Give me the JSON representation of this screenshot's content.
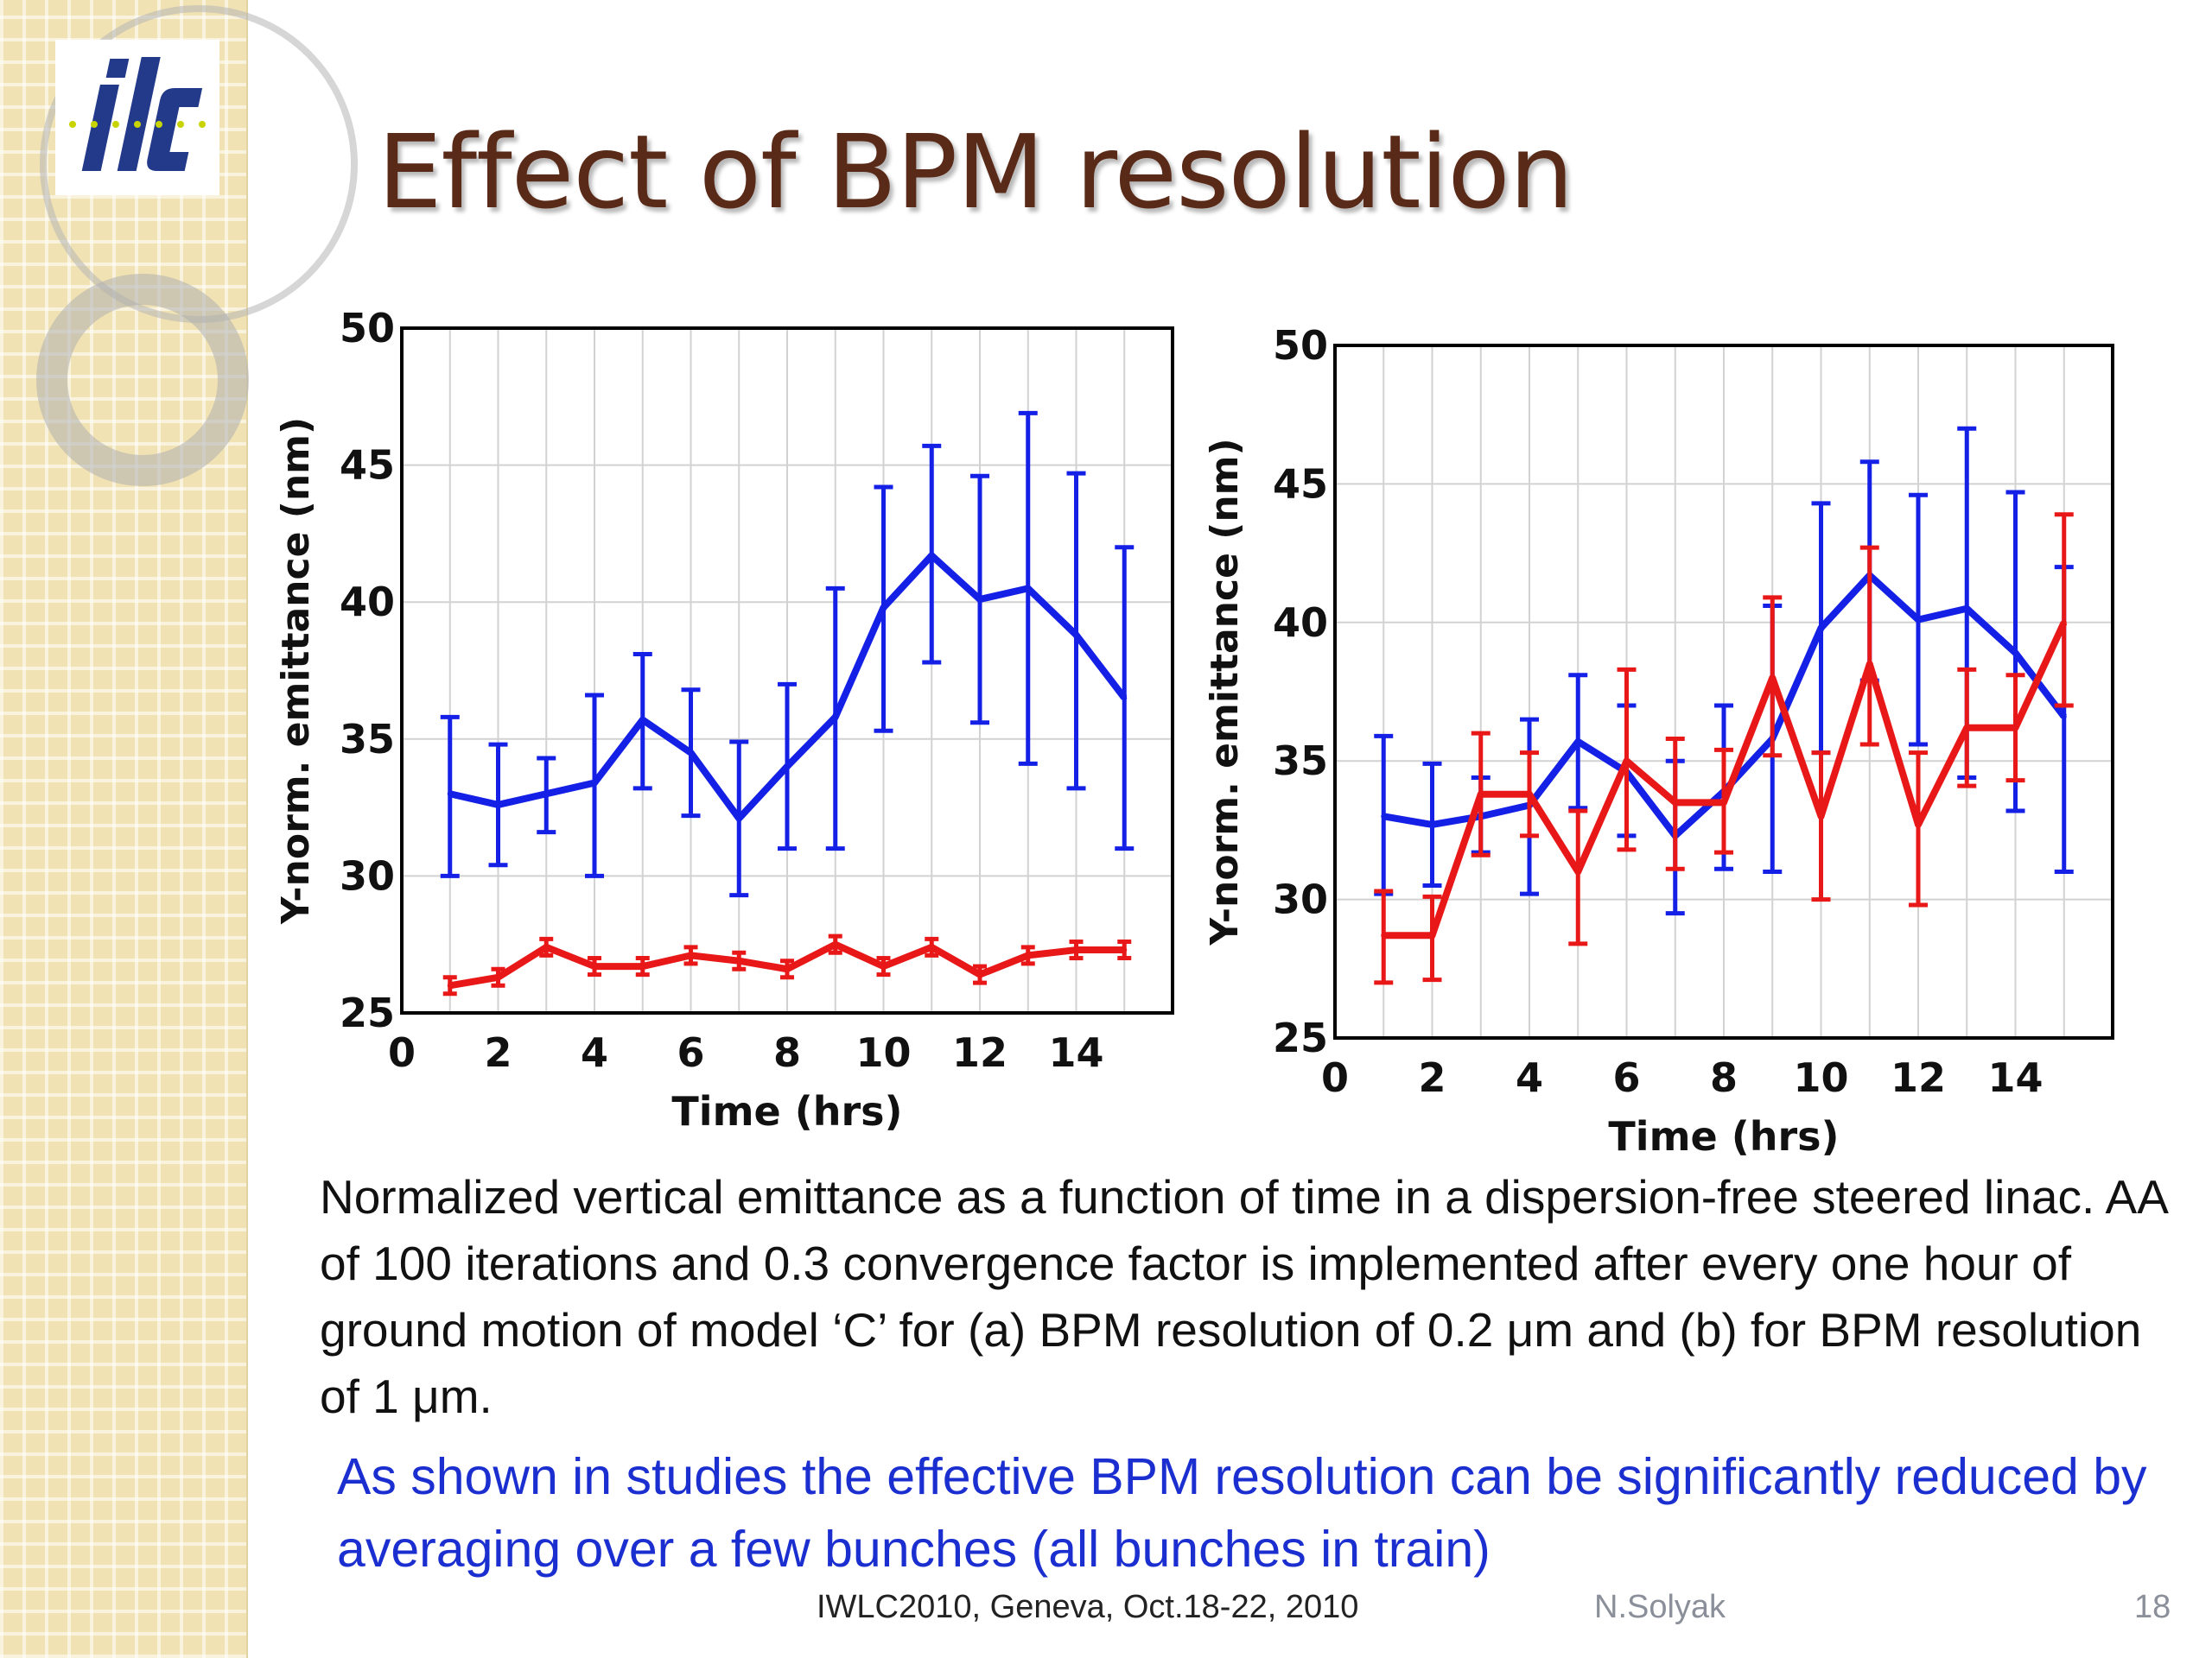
{
  "slide": {
    "title": "Effect of BPM resolution",
    "caption": "Normalized vertical emittance as a function of time in a dispersion-free steered linac.  AA of 100 iterations and 0.3 convergence factor is implemented after every one hour of ground motion of model ‘C’ for (a) BPM resolution of 0.2 μm and (b) for BPM resolution of 1 μm.",
    "note": "As shown in studies the effective BPM resolution can be significantly reduced by averaging over a few bunches (all bunches in train)",
    "footer": {
      "conference": "IWLC2010, Geneva, Oct.18-22, 2010",
      "author": "N.Solyak",
      "page": "18"
    },
    "logo": {
      "text": "ilc"
    }
  },
  "colors": {
    "blue": "#1520e6",
    "red": "#e81818",
    "title": "#5a2a18",
    "note": "#1b2fd0",
    "sidebar": "#f1e2b4"
  },
  "chart_data": [
    {
      "type": "line",
      "xlabel": "Time (hrs)",
      "ylabel": "Y-norm. emittance (nm)",
      "xlim": [
        0,
        16
      ],
      "ylim": [
        25,
        50
      ],
      "xticks": [
        "0",
        "2",
        "4",
        "6",
        "8",
        "10",
        "12",
        "14"
      ],
      "yticks": [
        "25",
        "30",
        "35",
        "40",
        "45",
        "50"
      ],
      "grid": true,
      "series": [
        {
          "color": "blue",
          "x": [
            1,
            2,
            3,
            4,
            5,
            6,
            7,
            8,
            9,
            10,
            11,
            12,
            13,
            14,
            15
          ],
          "y": [
            33.0,
            32.6,
            33.0,
            33.4,
            35.7,
            34.5,
            32.1,
            34.0,
            35.8,
            39.8,
            41.7,
            40.1,
            40.5,
            38.8,
            36.5
          ],
          "err_low": [
            30.0,
            30.4,
            31.6,
            30.0,
            33.2,
            32.2,
            29.3,
            31.0,
            31.0,
            35.3,
            37.8,
            35.6,
            34.1,
            33.2,
            31.0
          ],
          "err_high": [
            35.8,
            34.8,
            34.3,
            36.6,
            38.1,
            36.8,
            34.9,
            37.0,
            40.5,
            44.2,
            45.7,
            44.6,
            46.9,
            44.7,
            42.0
          ]
        },
        {
          "color": "red",
          "x": [
            1,
            2,
            3,
            4,
            5,
            6,
            7,
            8,
            9,
            10,
            11,
            12,
            13,
            14,
            15
          ],
          "y": [
            26.0,
            26.3,
            27.4,
            26.7,
            26.7,
            27.1,
            26.9,
            26.6,
            27.5,
            26.7,
            27.4,
            26.4,
            27.1,
            27.3,
            27.3
          ],
          "err_low": [
            25.7,
            26.0,
            27.1,
            26.4,
            26.4,
            26.8,
            26.6,
            26.3,
            27.2,
            26.4,
            27.1,
            26.1,
            26.8,
            27.0,
            27.0
          ],
          "err_high": [
            26.3,
            26.6,
            27.7,
            27.0,
            27.0,
            27.4,
            27.2,
            26.9,
            27.8,
            27.0,
            27.7,
            26.7,
            27.4,
            27.6,
            27.6
          ]
        }
      ]
    },
    {
      "type": "line",
      "xlabel": "Time (hrs)",
      "ylabel": "Y-norm. emittance (nm)",
      "xlim": [
        0,
        16
      ],
      "ylim": [
        25,
        50
      ],
      "xticks": [
        "0",
        "2",
        "4",
        "6",
        "8",
        "10",
        "12",
        "14"
      ],
      "yticks": [
        "25",
        "30",
        "35",
        "40",
        "45",
        "50"
      ],
      "grid": true,
      "series": [
        {
          "color": "blue",
          "x": [
            1,
            2,
            3,
            4,
            5,
            6,
            7,
            8,
            9,
            10,
            11,
            12,
            13,
            14,
            15
          ],
          "y": [
            33.0,
            32.7,
            33.0,
            33.4,
            35.7,
            34.6,
            32.3,
            33.9,
            35.8,
            39.8,
            41.7,
            40.1,
            40.5,
            38.9,
            36.6
          ],
          "err_low": [
            30.2,
            30.5,
            31.7,
            30.2,
            33.3,
            32.3,
            29.5,
            31.1,
            31.0,
            35.3,
            37.9,
            35.6,
            34.4,
            33.2,
            31.0
          ],
          "err_high": [
            35.9,
            34.9,
            34.4,
            36.5,
            38.1,
            37.0,
            35.0,
            37.0,
            40.6,
            44.3,
            45.8,
            44.6,
            47.0,
            44.7,
            42.0
          ]
        },
        {
          "color": "red",
          "x": [
            1,
            2,
            3,
            4,
            5,
            6,
            7,
            8,
            9,
            10,
            11,
            12,
            13,
            14,
            15
          ],
          "y": [
            28.7,
            28.7,
            33.8,
            33.8,
            31.0,
            35.0,
            33.5,
            33.5,
            38.0,
            33.0,
            38.5,
            32.7,
            36.2,
            36.2,
            40.0
          ],
          "err_low": [
            27.0,
            27.1,
            31.6,
            32.3,
            28.4,
            31.8,
            31.1,
            31.7,
            35.2,
            30.0,
            35.6,
            29.8,
            34.1,
            34.3,
            37.0
          ],
          "err_high": [
            30.3,
            30.1,
            36.0,
            35.3,
            33.2,
            38.3,
            35.8,
            35.4,
            40.9,
            35.3,
            42.7,
            35.3,
            38.3,
            38.1,
            43.9
          ]
        }
      ]
    }
  ]
}
